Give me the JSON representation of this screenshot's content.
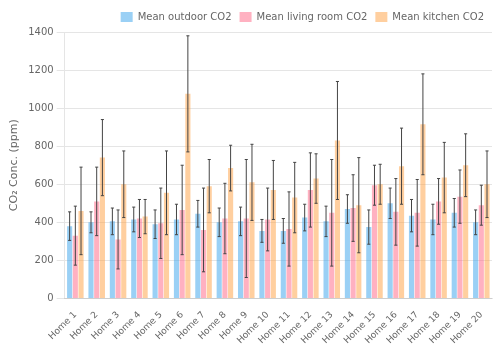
{
  "chart_data": {
    "type": "bar",
    "categories": [
      "Home 1",
      "Home 2",
      "Home 3",
      "Home 4",
      "Home 5",
      "Home 6",
      "Home 7",
      "Home 8",
      "Home 9",
      "Home 10",
      "Home 11",
      "Home 12",
      "Home 13",
      "Home 14",
      "Home 15",
      "Home 16",
      "Home 17",
      "Home 18",
      "Home 19",
      "Home 20"
    ],
    "series": [
      {
        "name": "Mean outdoor CO2",
        "values": [
          380,
          400,
          405,
          415,
          390,
          415,
          445,
          400,
          405,
          355,
          355,
          425,
          405,
          470,
          375,
          500,
          435,
          415,
          450,
          400
        ],
        "errors": [
          75,
          55,
          70,
          65,
          75,
          80,
          70,
          75,
          75,
          60,
          65,
          70,
          80,
          75,
          90,
          80,
          85,
          80,
          75,
          65
        ]
      },
      {
        "name": "Mean living room CO2",
        "values": [
          330,
          510,
          310,
          420,
          395,
          465,
          360,
          420,
          420,
          415,
          365,
          570,
          450,
          475,
          595,
          455,
          450,
          510,
          535,
          490
        ],
        "errors": [
          155,
          180,
          155,
          100,
          185,
          235,
          220,
          185,
          310,
          165,
          195,
          195,
          280,
          175,
          105,
          175,
          175,
          120,
          140,
          105
        ]
      },
      {
        "name": "Mean kitchen CO2",
        "values": [
          460,
          740,
          600,
          430,
          555,
          1075,
          590,
          685,
          610,
          570,
          530,
          630,
          830,
          490,
          600,
          695,
          915,
          635,
          700,
          600
        ],
        "errors": [
          230,
          200,
          175,
          90,
          220,
          305,
          140,
          120,
          200,
          155,
          185,
          130,
          310,
          250,
          105,
          200,
          265,
          185,
          165,
          175
        ]
      }
    ],
    "ylabel": "CO₂ Conc. (ppm)",
    "ylim": [
      0,
      1400
    ],
    "yticks": [
      0,
      200,
      400,
      600,
      800,
      1000,
      1200,
      1400
    ],
    "grid": true,
    "legend": "upper right"
  }
}
